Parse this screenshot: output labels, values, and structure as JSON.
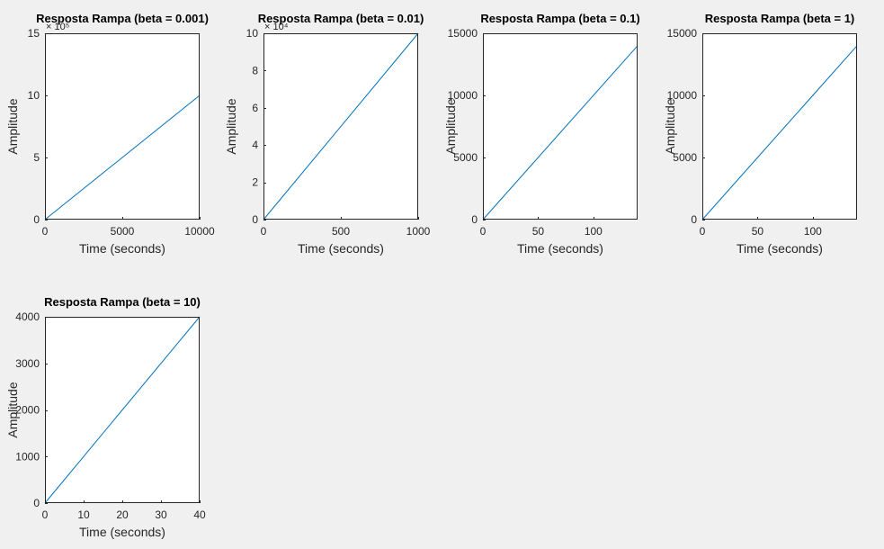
{
  "chart_data": [
    {
      "type": "line",
      "title": "Resposta Rampa (beta = 0.001)",
      "xlabel": "Time (seconds)",
      "ylabel": "Amplitude",
      "xlim": [
        0,
        10000
      ],
      "ylim": [
        0,
        15
      ],
      "xticks": [
        0,
        5000,
        10000
      ],
      "yticks": [
        0,
        5,
        10,
        15
      ],
      "y_exponent_label": "× 10⁵",
      "grid": false,
      "series": [
        {
          "x": [
            0,
            10000
          ],
          "y": [
            0,
            10
          ]
        }
      ]
    },
    {
      "type": "line",
      "title": "Resposta Rampa (beta = 0.01)",
      "xlabel": "Time (seconds)",
      "ylabel": "Amplitude",
      "xlim": [
        0,
        1000
      ],
      "ylim": [
        0,
        10
      ],
      "xticks": [
        0,
        500,
        1000
      ],
      "yticks": [
        0,
        2,
        4,
        6,
        8,
        10
      ],
      "y_exponent_label": "× 10⁴",
      "grid": false,
      "series": [
        {
          "x": [
            0,
            1000
          ],
          "y": [
            0,
            10
          ]
        }
      ]
    },
    {
      "type": "line",
      "title": "Resposta Rampa (beta = 0.1)",
      "xlabel": "Time (seconds)",
      "ylabel": "Amplitude",
      "xlim": [
        0,
        140
      ],
      "ylim": [
        0,
        15000
      ],
      "xticks": [
        0,
        50,
        100
      ],
      "yticks": [
        0,
        5000,
        10000,
        15000
      ],
      "grid": false,
      "series": [
        {
          "x": [
            0,
            140
          ],
          "y": [
            0,
            14000
          ]
        }
      ]
    },
    {
      "type": "line",
      "title": "Resposta Rampa (beta = 1)",
      "xlabel": "Time (seconds)",
      "ylabel": "Amplitude",
      "xlim": [
        0,
        140
      ],
      "ylim": [
        0,
        15000
      ],
      "xticks": [
        0,
        50,
        100
      ],
      "yticks": [
        0,
        5000,
        10000,
        15000
      ],
      "grid": false,
      "series": [
        {
          "x": [
            0,
            140
          ],
          "y": [
            0,
            14000
          ]
        }
      ]
    },
    {
      "type": "line",
      "title": "Resposta Rampa (beta = 10)",
      "xlabel": "Time (seconds)",
      "ylabel": "Amplitude",
      "xlim": [
        0,
        40
      ],
      "ylim": [
        0,
        4000
      ],
      "xticks": [
        0,
        10,
        20,
        30,
        40
      ],
      "yticks": [
        0,
        1000,
        2000,
        3000,
        4000
      ],
      "grid": false,
      "series": [
        {
          "x": [
            0,
            40
          ],
          "y": [
            0,
            4000
          ]
        }
      ]
    }
  ],
  "colors": {
    "background": "#f0f0f0",
    "axes_background": "#ffffff",
    "axes_edge": "#262626",
    "line": "#0072bd",
    "text": "#262626"
  }
}
